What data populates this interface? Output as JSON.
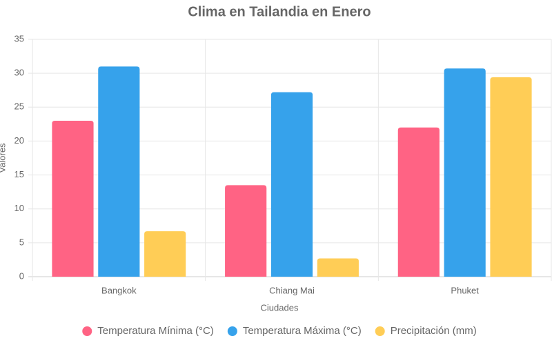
{
  "chart_data": {
    "type": "bar",
    "title": "Clima en Tailandia en Enero",
    "x_label": "Ciudades",
    "y_label": "Valores",
    "categories": [
      "Bangkok",
      "Chiang Mai",
      "Phuket"
    ],
    "series": [
      {
        "name": "Temperatura Mínima (°C)",
        "color": "#ff6384",
        "values": [
          23,
          13.5,
          22
        ]
      },
      {
        "name": "Temperatura Máxima (°C)",
        "color": "#36a2eb",
        "values": [
          31,
          27.2,
          30.7
        ]
      },
      {
        "name": "Precipitación (mm)",
        "color": "#ffcd56",
        "values": [
          6.7,
          2.7,
          29.4
        ]
      }
    ],
    "ylim": [
      0,
      35
    ],
    "yticks": [
      0,
      5,
      10,
      15,
      20,
      25,
      30,
      35
    ],
    "grid": true,
    "legend": "bottom"
  }
}
